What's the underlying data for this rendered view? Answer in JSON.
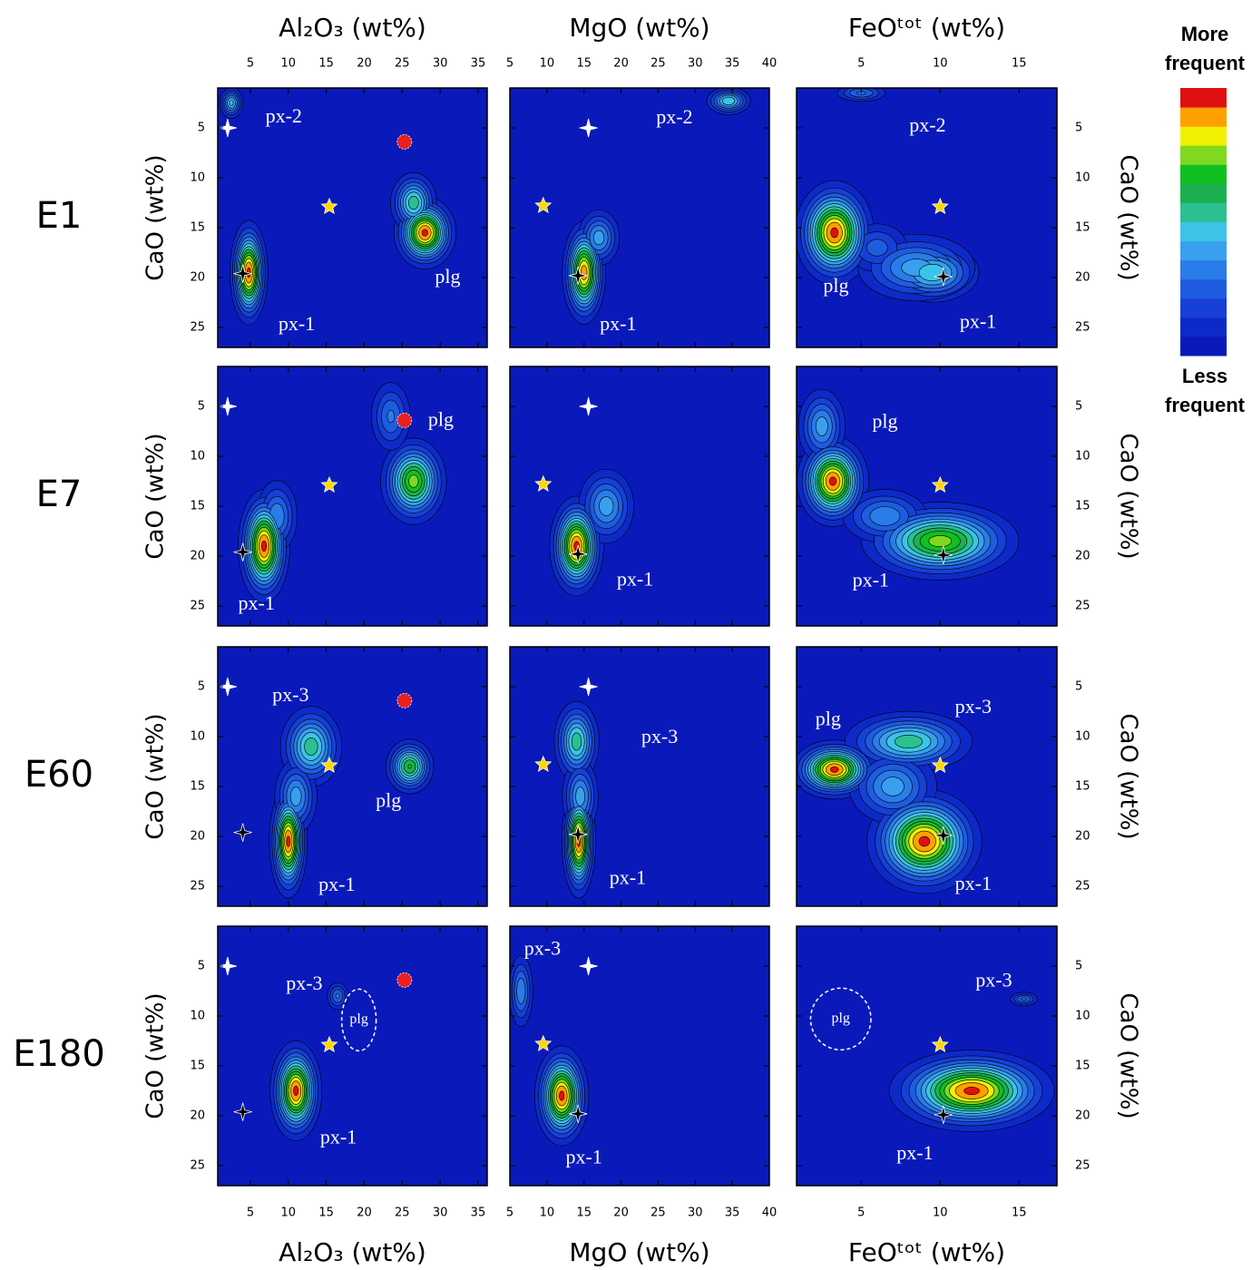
{
  "rows": [
    "E1",
    "E7",
    "E60",
    "E180"
  ],
  "ylabel": "CaO (wt%)",
  "ylim": [
    1,
    27
  ],
  "yticks": [
    5,
    10,
    15,
    20,
    25
  ],
  "y_reversed": true,
  "columns": [
    {
      "xlabel": "Al₂O₃ (wt%)",
      "xlim": [
        0.7,
        36.2
      ],
      "xticks": [
        5,
        10,
        15,
        20,
        25,
        30,
        35
      ],
      "points": [
        {
          "x": 2.0,
          "y": 5.0,
          "marker": "star4",
          "color": "#ffffff"
        },
        {
          "x": 25.3,
          "y": 6.4,
          "marker": "circle",
          "color": "#e82020"
        },
        {
          "x": 15.4,
          "y": 12.9,
          "marker": "star5",
          "color": "#ffd700"
        },
        {
          "x": 4.0,
          "y": 19.6,
          "marker": "star4",
          "color": "#000000"
        }
      ]
    },
    {
      "xlabel": "MgO (wt%)",
      "xlim": [
        5,
        40
      ],
      "xticks": [
        5,
        10,
        15,
        20,
        25,
        30,
        35,
        40
      ],
      "points": [
        {
          "x": 15.6,
          "y": 5.0,
          "marker": "star4",
          "color": "#ffffff"
        },
        {
          "x": 9.5,
          "y": 12.8,
          "marker": "star5",
          "color": "#ffd700"
        },
        {
          "x": 14.2,
          "y": 19.8,
          "marker": "star4",
          "color": "#000000"
        }
      ]
    },
    {
      "xlabel": "FeOᵗᵒᵗ (wt%)",
      "xlim": [
        0.9,
        17.4
      ],
      "xticks": [
        5,
        10,
        15
      ],
      "points": [
        {
          "x": 10.0,
          "y": 12.9,
          "marker": "star5",
          "color": "#ffd700"
        },
        {
          "x": 10.2,
          "y": 19.9,
          "marker": "star4",
          "color": "#000000"
        }
      ]
    }
  ],
  "colorbar": {
    "top_label": "More frequent",
    "bottom_label": "Less frequent",
    "colors": [
      "#0a1aba",
      "#0d2ac8",
      "#1640d6",
      "#1e5ce0",
      "#2a7ce8",
      "#38a0ee",
      "#3cc4e8",
      "#2cc090",
      "#1cb050",
      "#10c020",
      "#80d820",
      "#f0f000",
      "#ffa000",
      "#e01010"
    ]
  },
  "chart_data": [
    {
      "type": "contour",
      "peaks": [
        {
          "x": 2.5,
          "y": 2.5,
          "sx": 0.8,
          "sy": 0.8,
          "amp": 0.45
        },
        {
          "x": 4.8,
          "y": 19.5,
          "sx": 1.1,
          "sy": 2.3,
          "amp": 0.95
        },
        {
          "x": 28,
          "y": 15.5,
          "sx": 1.8,
          "sy": 1.6,
          "amp": 0.95
        },
        {
          "x": 26.5,
          "y": 12.5,
          "sx": 1.5,
          "sy": 1.5,
          "amp": 0.55
        }
      ],
      "annotations": [
        {
          "text": "px-2",
          "x": 9.4,
          "y": 4.0
        },
        {
          "text": "plg",
          "x": 31,
          "y": 20.1
        },
        {
          "text": "px-1",
          "x": 11.1,
          "y": 24.8
        }
      ]
    },
    {
      "type": "contour",
      "peaks": [
        {
          "x": 34.5,
          "y": 2.3,
          "sx": 1.5,
          "sy": 0.7,
          "amp": 0.5
        },
        {
          "x": 15,
          "y": 19.5,
          "sx": 1.3,
          "sy": 2.3,
          "amp": 0.9
        },
        {
          "x": 17,
          "y": 16,
          "sx": 1.5,
          "sy": 1.5,
          "amp": 0.4
        }
      ],
      "annotations": [
        {
          "text": "px-2",
          "x": 27.2,
          "y": 4.1
        },
        {
          "text": "px-1",
          "x": 19.6,
          "y": 24.8
        }
      ]
    },
    {
      "type": "contour",
      "peaks": [
        {
          "x": 5,
          "y": 1.5,
          "sx": 0.9,
          "sy": 0.5,
          "amp": 0.3
        },
        {
          "x": 3.3,
          "y": 15.5,
          "sx": 1.1,
          "sy": 2.3,
          "amp": 0.95
        },
        {
          "x": 9.5,
          "y": 19.5,
          "sx": 1.5,
          "sy": 1.5,
          "amp": 0.5
        },
        {
          "x": 8.5,
          "y": 19,
          "sx": 2,
          "sy": 1.8,
          "amp": 0.4
        },
        {
          "x": 6,
          "y": 17,
          "sx": 1.2,
          "sy": 1.5,
          "amp": 0.25
        }
      ],
      "annotations": [
        {
          "text": "px-2",
          "x": 9.2,
          "y": 4.9
        },
        {
          "text": "plg",
          "x": 3.4,
          "y": 21
        },
        {
          "text": "px-1",
          "x": 12.4,
          "y": 24.6
        }
      ]
    },
    {
      "type": "contour",
      "peaks": [
        {
          "x": 6.8,
          "y": 19,
          "sx": 1.5,
          "sy": 2.5,
          "amp": 0.95
        },
        {
          "x": 8.5,
          "y": 16,
          "sx": 1.5,
          "sy": 2,
          "amp": 0.35
        },
        {
          "x": 26.5,
          "y": 12.5,
          "sx": 2,
          "sy": 2,
          "amp": 0.75
        },
        {
          "x": 23.5,
          "y": 6,
          "sx": 1.5,
          "sy": 2,
          "amp": 0.3
        }
      ],
      "annotations": [
        {
          "text": "plg",
          "x": 30.1,
          "y": 6.5
        },
        {
          "text": "px-1",
          "x": 5.8,
          "y": 24.9
        }
      ]
    },
    {
      "type": "contour",
      "peaks": [
        {
          "x": 14,
          "y": 19,
          "sx": 1.6,
          "sy": 2.2,
          "amp": 0.95
        },
        {
          "x": 18,
          "y": 15,
          "sx": 2,
          "sy": 2,
          "amp": 0.4
        }
      ],
      "annotations": [
        {
          "text": "px-1",
          "x": 21.9,
          "y": 22.5
        }
      ]
    },
    {
      "type": "contour",
      "peaks": [
        {
          "x": 3.2,
          "y": 12.5,
          "sx": 1,
          "sy": 2,
          "amp": 0.95
        },
        {
          "x": 2.5,
          "y": 7,
          "sx": 0.8,
          "sy": 2,
          "amp": 0.4
        },
        {
          "x": 10,
          "y": 18.5,
          "sx": 2.3,
          "sy": 1.8,
          "amp": 0.75
        },
        {
          "x": 6.5,
          "y": 16,
          "sx": 1.5,
          "sy": 1.5,
          "amp": 0.35
        }
      ],
      "annotations": [
        {
          "text": "plg",
          "x": 6.5,
          "y": 6.7
        },
        {
          "text": "px-1",
          "x": 5.6,
          "y": 22.6
        }
      ]
    },
    {
      "type": "contour",
      "peaks": [
        {
          "x": 13,
          "y": 11,
          "sx": 2,
          "sy": 2,
          "amp": 0.55
        },
        {
          "x": 10,
          "y": 20.5,
          "sx": 1.1,
          "sy": 2.5,
          "amp": 0.95
        },
        {
          "x": 11,
          "y": 16,
          "sx": 1.5,
          "sy": 2,
          "amp": 0.4
        },
        {
          "x": 26,
          "y": 13,
          "sx": 1.5,
          "sy": 1.3,
          "amp": 0.65
        }
      ],
      "annotations": [
        {
          "text": "px-3",
          "x": 10.3,
          "y": 6.0
        },
        {
          "text": "plg",
          "x": 23.2,
          "y": 16.6
        },
        {
          "text": "px-1",
          "x": 16.4,
          "y": 25
        }
      ]
    },
    {
      "type": "contour",
      "peaks": [
        {
          "x": 14,
          "y": 10.5,
          "sx": 1.5,
          "sy": 2,
          "amp": 0.55
        },
        {
          "x": 14.3,
          "y": 20.5,
          "sx": 1,
          "sy": 2.5,
          "amp": 0.95
        },
        {
          "x": 14.5,
          "y": 16,
          "sx": 1.3,
          "sy": 2,
          "amp": 0.4
        }
      ],
      "annotations": [
        {
          "text": "px-3",
          "x": 25.2,
          "y": 10.2
        },
        {
          "text": "px-1",
          "x": 20.9,
          "y": 24.3
        }
      ]
    },
    {
      "type": "contour",
      "peaks": [
        {
          "x": 3.3,
          "y": 13.3,
          "sx": 1.2,
          "sy": 1.3,
          "amp": 0.95
        },
        {
          "x": 8,
          "y": 10.5,
          "sx": 2,
          "sy": 1.5,
          "amp": 0.55
        },
        {
          "x": 9,
          "y": 20.5,
          "sx": 1.6,
          "sy": 2.3,
          "amp": 0.95
        },
        {
          "x": 7,
          "y": 15,
          "sx": 1.5,
          "sy": 2,
          "amp": 0.4
        }
      ],
      "annotations": [
        {
          "text": "plg",
          "x": 2.9,
          "y": 8.4
        },
        {
          "text": "px-3",
          "x": 12.1,
          "y": 7.2
        },
        {
          "text": "px-1",
          "x": 12.1,
          "y": 24.9
        }
      ]
    },
    {
      "type": "contour",
      "peaks": [
        {
          "x": 16.5,
          "y": 8,
          "sx": 0.8,
          "sy": 0.8,
          "amp": 0.3
        },
        {
          "x": 11,
          "y": 17.5,
          "sx": 1.5,
          "sy": 2.2,
          "amp": 0.95
        }
      ],
      "annotations": [
        {
          "text": "px-3",
          "x": 12.1,
          "y": 6.9
        },
        {
          "text": "plg",
          "x": 19.3,
          "y": 10.4,
          "circled": true
        },
        {
          "text": "px-1",
          "x": 16.6,
          "y": 22.3
        }
      ]
    },
    {
      "type": "contour",
      "peaks": [
        {
          "x": 6.5,
          "y": 7.5,
          "sx": 0.9,
          "sy": 2,
          "amp": 0.35
        },
        {
          "x": 12,
          "y": 18,
          "sx": 1.6,
          "sy": 2.2,
          "amp": 0.95
        }
      ],
      "annotations": [
        {
          "text": "px-3",
          "x": 9.4,
          "y": 3.4
        },
        {
          "text": "px-1",
          "x": 15,
          "y": 24.3
        }
      ]
    },
    {
      "type": "contour",
      "peaks": [
        {
          "x": 15.3,
          "y": 8.3,
          "sx": 0.5,
          "sy": 0.4,
          "amp": 0.3
        },
        {
          "x": 12,
          "y": 17.5,
          "sx": 2.3,
          "sy": 1.8,
          "amp": 0.95
        }
      ],
      "annotations": [
        {
          "text": "plg",
          "x": 3.7,
          "y": 10.3,
          "circled": true
        },
        {
          "text": "px-3",
          "x": 13.4,
          "y": 6.6
        },
        {
          "text": "px-1",
          "x": 8.4,
          "y": 23.9
        }
      ]
    }
  ]
}
